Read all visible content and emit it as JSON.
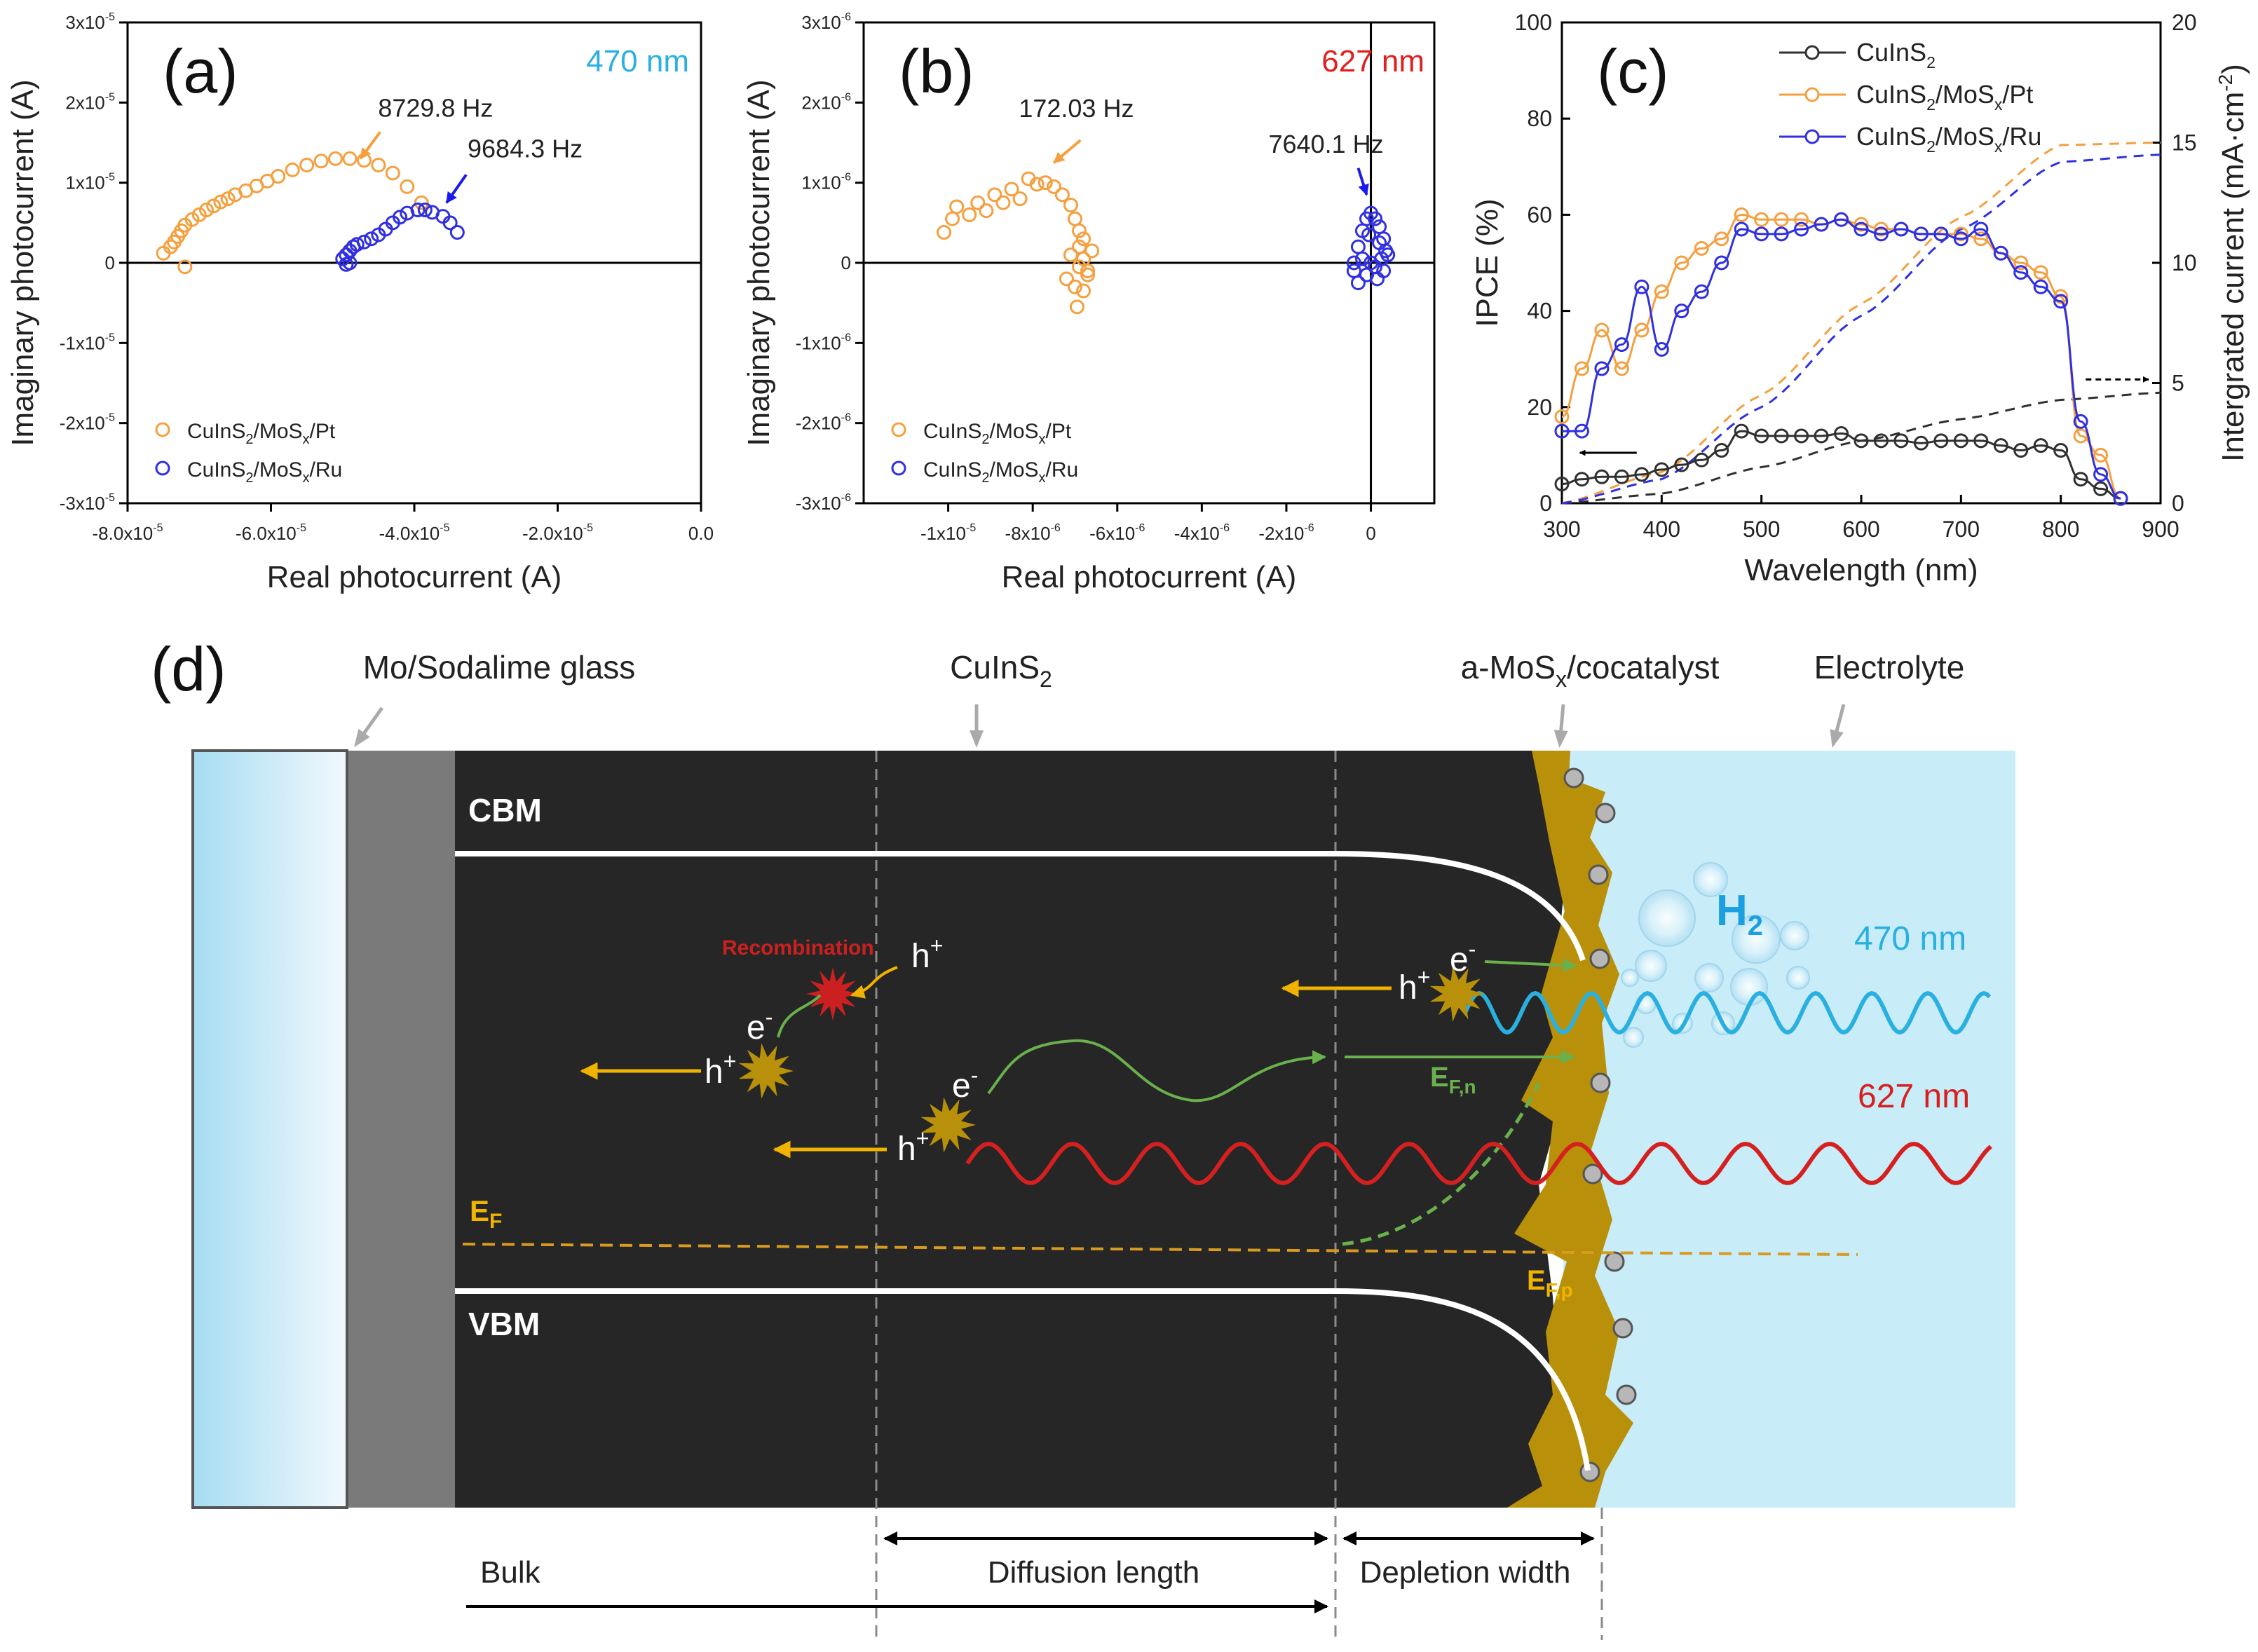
{
  "chart_data": [
    {
      "panel": "(a)",
      "type": "scatter",
      "annotation": "470 nm",
      "xlabel": "Real photocurrent (A)",
      "ylabel": "Imaginary photocurrent (A)",
      "xlim": [
        -8e-05,
        0.0
      ],
      "ylim": [
        -3e-05,
        3e-05
      ],
      "xticks": [
        {
          "v": -8e-05,
          "m": "-8.0x10",
          "e": "-5"
        },
        {
          "v": -6e-05,
          "m": "-6.0x10",
          "e": "-5"
        },
        {
          "v": -4e-05,
          "m": "-4.0x10",
          "e": "-5"
        },
        {
          "v": -2e-05,
          "m": "-2.0x10",
          "e": "-5"
        },
        {
          "v": 0,
          "m": "0.0",
          "e": ""
        }
      ],
      "yticks": [
        {
          "v": 3e-05,
          "m": "3x10",
          "e": "-5"
        },
        {
          "v": 2e-05,
          "m": "2x10",
          "e": "-5"
        },
        {
          "v": 1e-05,
          "m": "1x10",
          "e": "-5"
        },
        {
          "v": 0,
          "m": "0",
          "e": ""
        },
        {
          "v": -1e-05,
          "m": "-1x10",
          "e": "-5"
        },
        {
          "v": -2e-05,
          "m": "-2x10",
          "e": "-5"
        },
        {
          "v": -3e-05,
          "m": "-3x10",
          "e": "-5"
        }
      ],
      "legend": [
        {
          "pre": "CuInS",
          "sub1": "2",
          "mid": "/MoS",
          "sub2": "x",
          "post": "/Pt",
          "color": "#f5a040"
        },
        {
          "pre": "CuInS",
          "sub1": "2",
          "mid": "/MoS",
          "sub2": "x",
          "post": "/Ru",
          "color": "#3030e0"
        }
      ],
      "freq_labels": [
        {
          "text": "8729.8 Hz",
          "x": -4.75e-05,
          "y": 1.3e-05,
          "color": "#f5a040"
        },
        {
          "text": "9684.3 Hz",
          "x": -3.55e-05,
          "y": 7.5e-06,
          "color": "#1a1aee"
        }
      ],
      "series": [
        {
          "name": "CuInS2/MoSx/Pt",
          "color": "#f5a040",
          "x": [
            -7.5,
            -7.4,
            -7.35,
            -7.3,
            -7.25,
            -7.2,
            -7.1,
            -7.0,
            -6.9,
            -6.8,
            -6.7,
            -6.6,
            -6.5,
            -6.35,
            -6.2,
            -6.05,
            -5.9,
            -5.7,
            -5.5,
            -5.3,
            -5.1,
            -4.9,
            -4.7,
            -4.5,
            -4.3,
            -4.1,
            -3.9,
            -7.2
          ],
          "y": [
            0.12,
            0.2,
            0.26,
            0.33,
            0.4,
            0.47,
            0.54,
            0.6,
            0.66,
            0.71,
            0.76,
            0.8,
            0.85,
            0.9,
            0.96,
            1.02,
            1.08,
            1.16,
            1.22,
            1.27,
            1.3,
            1.3,
            1.28,
            1.22,
            1.12,
            0.95,
            0.75,
            -0.05
          ]
        },
        {
          "name": "CuInS2/MoSx/Ru",
          "color": "#3030e0",
          "x": [
            -5.0,
            -4.95,
            -4.9,
            -4.85,
            -4.8,
            -4.7,
            -4.6,
            -4.5,
            -4.4,
            -4.3,
            -4.2,
            -4.1,
            -3.95,
            -3.85,
            -3.75,
            -3.6,
            -3.5,
            -3.4,
            -4.95,
            -4.9
          ],
          "y": [
            0.05,
            0.1,
            0.15,
            0.2,
            0.23,
            0.26,
            0.3,
            0.35,
            0.42,
            0.5,
            0.57,
            0.62,
            0.66,
            0.66,
            0.63,
            0.58,
            0.5,
            0.38,
            -0.02,
            0.0
          ]
        }
      ]
    },
    {
      "panel": "(b)",
      "type": "scatter",
      "annotation": "627 nm",
      "xlabel": "Real photocurrent (A)",
      "ylabel": "Imaginary photocurrent (A)",
      "xlim": [
        -1.2e-05,
        1.5e-06
      ],
      "ylim": [
        -3e-06,
        3e-06
      ],
      "xticks": [
        {
          "v": -1e-05,
          "m": "-1x10",
          "e": "-5"
        },
        {
          "v": -8e-06,
          "m": "-8x10",
          "e": "-6"
        },
        {
          "v": -6e-06,
          "m": "-6x10",
          "e": "-6"
        },
        {
          "v": -4e-06,
          "m": "-4x10",
          "e": "-6"
        },
        {
          "v": -2e-06,
          "m": "-2x10",
          "e": "-6"
        },
        {
          "v": 0,
          "m": "0",
          "e": ""
        }
      ],
      "yticks": [
        {
          "v": 3e-06,
          "m": "3x10",
          "e": "-6"
        },
        {
          "v": 2e-06,
          "m": "2x10",
          "e": "-6"
        },
        {
          "v": 1e-06,
          "m": "1x10",
          "e": "-6"
        },
        {
          "v": 0,
          "m": "0",
          "e": ""
        },
        {
          "v": -1e-06,
          "m": "-1x10",
          "e": "-6"
        },
        {
          "v": -2e-06,
          "m": "-2x10",
          "e": "-6"
        },
        {
          "v": -3e-06,
          "m": "-3x10",
          "e": "-6"
        }
      ],
      "legend": [
        {
          "pre": "CuInS",
          "sub1": "2",
          "mid": "/MoS",
          "sub2": "x",
          "post": "/Pt",
          "color": "#f5a040"
        },
        {
          "pre": "CuInS",
          "sub1": "2",
          "mid": "/MoS",
          "sub2": "x",
          "post": "/Ru",
          "color": "#3030e0"
        }
      ],
      "freq_labels": [
        {
          "text": "172.03 Hz",
          "x": -7.5e-06,
          "y": 1.25e-06,
          "color": "#f5a040"
        },
        {
          "text": "7640.1 Hz",
          "x": -1e-07,
          "y": 8.5e-07,
          "color": "#1a1aee"
        }
      ],
      "series": [
        {
          "name": "CuInS2/MoSx/Pt",
          "color": "#f5a040",
          "x": [
            -10.1,
            -9.9,
            -9.8,
            -9.5,
            -9.3,
            -9.1,
            -8.9,
            -8.7,
            -8.5,
            -8.3,
            -8.1,
            -7.9,
            -7.7,
            -7.5,
            -7.3,
            -7.1,
            -7.0,
            -6.9,
            -6.8,
            -6.9,
            -7.1,
            -6.8,
            -6.9,
            -6.7,
            -7.2,
            -7.0,
            -6.6,
            -6.95,
            -6.8,
            -6.7
          ],
          "y": [
            0.38,
            0.55,
            0.7,
            0.6,
            0.75,
            0.65,
            0.85,
            0.75,
            0.92,
            0.8,
            1.05,
            0.98,
            1.0,
            0.95,
            0.85,
            0.72,
            0.55,
            0.4,
            0.3,
            0.2,
            0.1,
            0.05,
            -0.05,
            -0.1,
            -0.2,
            -0.3,
            0.15,
            -0.55,
            -0.35,
            -0.15
          ]
        },
        {
          "name": "CuInS2/MoSx/Ru",
          "color": "#3030e0",
          "x": [
            -0.4,
            -0.3,
            -0.2,
            -0.1,
            0.0,
            0.1,
            0.2,
            0.3,
            0.35,
            0.25,
            0.1,
            -0.1,
            -0.3,
            -0.4,
            -0.2,
            0.0,
            0.15,
            0.3,
            0.4,
            0.2,
            -0.05
          ],
          "y": [
            0.0,
            0.2,
            0.4,
            0.55,
            0.62,
            0.55,
            0.45,
            0.3,
            0.15,
            0.05,
            -0.05,
            -0.15,
            -0.25,
            -0.1,
            0.05,
            0.0,
            -0.2,
            -0.1,
            0.1,
            0.25,
            0.35
          ]
        }
      ]
    },
    {
      "panel": "(c)",
      "type": "line",
      "xlabel": "Wavelength (nm)",
      "ylabel": "IPCE (%)",
      "y2label": "Intergrated current (mA·cm",
      "y2label_sup": "-2",
      "y2label_end": ")",
      "xlim": [
        300,
        900
      ],
      "ylim": [
        0,
        100
      ],
      "y2lim": [
        0,
        20
      ],
      "xticks": [
        300,
        400,
        500,
        600,
        700,
        800,
        900
      ],
      "yticks": [
        0,
        20,
        40,
        60,
        80,
        100
      ],
      "y2ticks": [
        0,
        5,
        10,
        15,
        20
      ],
      "legend": [
        {
          "pre": "CuInS",
          "sub1": "2",
          "mid": "",
          "sub2": "",
          "post": "",
          "color": "#303030"
        },
        {
          "pre": "CuInS",
          "sub1": "2",
          "mid": "/MoS",
          "sub2": "x",
          "post": "/Pt",
          "color": "#f5a040"
        },
        {
          "pre": "CuInS",
          "sub1": "2",
          "mid": "/MoS",
          "sub2": "x",
          "post": "/Ru",
          "color": "#3030e0"
        }
      ],
      "series": [
        {
          "name": "CuInS2",
          "color": "#303030",
          "x": [
            300,
            320,
            340,
            360,
            380,
            400,
            420,
            440,
            460,
            480,
            500,
            520,
            540,
            560,
            580,
            600,
            620,
            640,
            660,
            680,
            700,
            720,
            740,
            760,
            780,
            800,
            820,
            840,
            860
          ],
          "y": [
            4,
            5,
            5.5,
            5.5,
            6,
            7,
            8,
            9,
            11,
            15,
            14,
            14,
            14,
            14,
            14.5,
            13,
            13,
            13,
            12.5,
            13,
            13,
            13,
            12,
            11,
            12,
            11,
            5,
            3,
            1
          ]
        },
        {
          "name": "CuInS2/MoSx/Pt",
          "color": "#f5a040",
          "x": [
            300,
            320,
            340,
            360,
            380,
            400,
            420,
            440,
            460,
            480,
            500,
            520,
            540,
            560,
            580,
            600,
            620,
            640,
            660,
            680,
            700,
            720,
            740,
            760,
            780,
            800,
            820,
            840,
            860
          ],
          "y": [
            18,
            28,
            36,
            28,
            36,
            44,
            50,
            53,
            55,
            60,
            59,
            59,
            59,
            58,
            59,
            58,
            57,
            57,
            56,
            56,
            56,
            55,
            52,
            50,
            48,
            43,
            14,
            10,
            1
          ]
        },
        {
          "name": "CuInS2/MoSx/Ru",
          "color": "#3030e0",
          "x": [
            300,
            320,
            340,
            360,
            380,
            400,
            420,
            440,
            460,
            480,
            500,
            520,
            540,
            560,
            580,
            600,
            620,
            640,
            660,
            680,
            700,
            720,
            740,
            760,
            780,
            800,
            820,
            840,
            860
          ],
          "y": [
            15,
            15,
            28,
            33,
            45,
            32,
            40,
            44,
            50,
            57,
            56,
            56,
            57,
            58,
            59,
            57,
            56,
            57,
            56,
            56,
            55,
            57,
            52,
            48,
            45,
            42,
            17,
            6,
            1
          ]
        }
      ],
      "integrated_series": [
        {
          "name": "CuInS2",
          "color": "#303030",
          "x": [
            300,
            400,
            500,
            600,
            700,
            800,
            900
          ],
          "y": [
            0,
            0.4,
            1.5,
            2.6,
            3.5,
            4.3,
            4.6
          ]
        },
        {
          "name": "CuInS2/MoSx/Pt",
          "color": "#f5a040",
          "x": [
            300,
            400,
            500,
            600,
            700,
            800,
            900
          ],
          "y": [
            0,
            1.3,
            4.5,
            8.3,
            11.9,
            14.9,
            15
          ]
        },
        {
          "name": "CuInS2/MoSx/Ru",
          "color": "#3030e0",
          "x": [
            300,
            400,
            500,
            600,
            700,
            800,
            900
          ],
          "y": [
            0,
            1,
            4,
            7.8,
            11.4,
            14.2,
            14.5
          ]
        }
      ]
    }
  ],
  "diagram": {
    "panel_label": "(d)",
    "top_labels": {
      "glass": "Mo/Sodalime glass",
      "absorber": "CuInS",
      "absorber_sub": "2",
      "cocat_pre": "a-MoS",
      "cocat_sub": "x",
      "cocat_post": "/cocatalyst",
      "electrolyte": "Electrolyte"
    },
    "band_labels": {
      "cbm": "CBM",
      "vbm": "VBM",
      "ef": "E",
      "ef_sub": "F",
      "efn": "E",
      "efn_sub": "F,n",
      "efp": "E",
      "efp_sub": "F,p"
    },
    "carriers": {
      "h": "h",
      "e": "e",
      "plus": "+",
      "minus": "-"
    },
    "recombination": "Recombination",
    "h2": "H",
    "h2_sub": "2",
    "light": {
      "blue": "470 nm",
      "red": "627 nm"
    },
    "bottom_labels": {
      "bulk": "Bulk",
      "diffusion": "Diffusion length",
      "depletion": "Depletion width"
    },
    "colors": {
      "absorber": "#262626",
      "electrolyte": "#c8ecf8",
      "cocatalyst": "#b8900a",
      "blue_light": "#2ab0e0",
      "red_light": "#d62020",
      "green": "#6ab04c",
      "arrow": "#f0b400"
    }
  }
}
